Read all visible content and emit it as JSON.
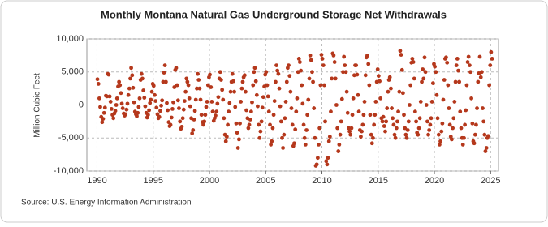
{
  "chart_data": {
    "type": "scatter",
    "title": "Monthly Montana Natural Gas Underground Storage Net Withdrawals",
    "y_label": "Million Cubic Feet",
    "source": "Source: U.S. Energy Information Administration",
    "color": "#b5381c",
    "grid": true,
    "xlim": [
      1989.1,
      2025.7
    ],
    "xticks": [
      1990,
      1995,
      2000,
      2005,
      2010,
      2015,
      2020,
      2025
    ],
    "ylim": [
      -10000,
      10000
    ],
    "yticks": [
      {
        "value": 10000,
        "label": "10,000"
      },
      {
        "value": 5000,
        "label": "5,000"
      },
      0,
      {
        "value": -5000,
        "label": "-5,000"
      },
      {
        "value": -10000,
        "label": "-10,000"
      }
    ],
    "x": [
      1990.04,
      1990.13,
      1990.21,
      1990.29,
      1990.38,
      1990.46,
      1990.54,
      1990.63,
      1990.71,
      1990.79,
      1990.88,
      1990.96,
      1991.04,
      1991.13,
      1991.21,
      1991.29,
      1991.38,
      1991.46,
      1991.54,
      1991.63,
      1991.71,
      1991.79,
      1991.88,
      1991.96,
      1992.04,
      1992.13,
      1992.21,
      1992.29,
      1992.38,
      1992.46,
      1992.54,
      1992.63,
      1992.71,
      1992.79,
      1992.88,
      1992.96,
      1993.04,
      1993.13,
      1993.21,
      1993.29,
      1993.38,
      1993.46,
      1993.54,
      1993.63,
      1993.71,
      1993.79,
      1993.88,
      1993.96,
      1994.04,
      1994.13,
      1994.21,
      1994.29,
      1994.38,
      1994.46,
      1994.54,
      1994.63,
      1994.71,
      1994.79,
      1994.88,
      1994.96,
      1995.04,
      1995.13,
      1995.21,
      1995.29,
      1995.38,
      1995.46,
      1995.54,
      1995.63,
      1995.71,
      1995.79,
      1995.88,
      1995.96,
      1996.04,
      1996.13,
      1996.21,
      1996.29,
      1996.38,
      1996.46,
      1996.54,
      1996.63,
      1996.71,
      1996.79,
      1996.88,
      1996.96,
      1997.04,
      1997.13,
      1997.21,
      1997.29,
      1997.38,
      1997.46,
      1997.54,
      1997.63,
      1997.71,
      1997.79,
      1997.88,
      1997.96,
      1998.04,
      1998.13,
      1998.21,
      1998.29,
      1998.38,
      1998.46,
      1998.54,
      1998.63,
      1998.71,
      1998.79,
      1998.88,
      1998.96,
      1999.04,
      1999.13,
      1999.21,
      1999.29,
      1999.38,
      1999.46,
      1999.54,
      1999.63,
      1999.71,
      1999.79,
      1999.88,
      1999.96,
      2000.04,
      2000.13,
      2000.21,
      2000.29,
      2000.38,
      2000.46,
      2000.54,
      2000.63,
      2000.71,
      2000.79,
      2000.88,
      2000.96,
      2001.04,
      2001.13,
      2001.21,
      2001.29,
      2001.38,
      2001.46,
      2001.54,
      2001.63,
      2001.71,
      2001.79,
      2001.88,
      2001.96,
      2002.04,
      2002.13,
      2002.21,
      2002.29,
      2002.38,
      2002.46,
      2002.54,
      2002.63,
      2002.71,
      2002.79,
      2002.88,
      2002.96,
      2003.04,
      2003.13,
      2003.21,
      2003.29,
      2003.38,
      2003.46,
      2003.54,
      2003.63,
      2003.71,
      2003.79,
      2003.88,
      2003.96,
      2004.04,
      2004.13,
      2004.21,
      2004.29,
      2004.38,
      2004.46,
      2004.54,
      2004.63,
      2004.71,
      2004.79,
      2004.88,
      2004.96,
      2005.04,
      2005.13,
      2005.21,
      2005.29,
      2005.38,
      2005.46,
      2005.54,
      2005.63,
      2005.71,
      2005.79,
      2005.88,
      2005.96,
      2006.04,
      2006.13,
      2006.21,
      2006.29,
      2006.38,
      2006.46,
      2006.54,
      2006.63,
      2006.71,
      2006.79,
      2006.88,
      2006.96,
      2007.04,
      2007.13,
      2007.21,
      2007.29,
      2007.38,
      2007.46,
      2007.54,
      2007.63,
      2007.71,
      2007.79,
      2007.88,
      2007.96,
      2008.04,
      2008.13,
      2008.21,
      2008.29,
      2008.38,
      2008.46,
      2008.54,
      2008.63,
      2008.71,
      2008.79,
      2008.88,
      2008.96,
      2009.04,
      2009.13,
      2009.21,
      2009.29,
      2009.38,
      2009.46,
      2009.54,
      2009.63,
      2009.71,
      2009.79,
      2009.88,
      2009.96,
      2010.04,
      2010.13,
      2010.21,
      2010.29,
      2010.38,
      2010.46,
      2010.54,
      2010.63,
      2010.71,
      2010.79,
      2010.88,
      2010.96,
      2011.04,
      2011.13,
      2011.21,
      2011.29,
      2011.38,
      2011.46,
      2011.54,
      2011.63,
      2011.71,
      2011.79,
      2011.88,
      2011.96,
      2012.04,
      2012.13,
      2012.21,
      2012.29,
      2012.38,
      2012.46,
      2012.54,
      2012.63,
      2012.71,
      2012.79,
      2012.88,
      2012.96,
      2013.04,
      2013.13,
      2013.21,
      2013.29,
      2013.38,
      2013.46,
      2013.54,
      2013.63,
      2013.71,
      2013.79,
      2013.88,
      2013.96,
      2014.04,
      2014.13,
      2014.21,
      2014.29,
      2014.38,
      2014.46,
      2014.54,
      2014.63,
      2014.71,
      2014.79,
      2014.88,
      2014.96,
      2015.04,
      2015.13,
      2015.21,
      2015.29,
      2015.38,
      2015.46,
      2015.54,
      2015.63,
      2015.71,
      2015.79,
      2015.88,
      2015.96,
      2016.04,
      2016.13,
      2016.21,
      2016.29,
      2016.38,
      2016.46,
      2016.54,
      2016.63,
      2016.71,
      2016.79,
      2016.88,
      2016.96,
      2017.04,
      2017.13,
      2017.21,
      2017.29,
      2017.38,
      2017.46,
      2017.54,
      2017.63,
      2017.71,
      2017.79,
      2017.88,
      2017.96,
      2018.04,
      2018.13,
      2018.21,
      2018.29,
      2018.38,
      2018.46,
      2018.54,
      2018.63,
      2018.71,
      2018.79,
      2018.88,
      2018.96,
      2019.04,
      2019.13,
      2019.21,
      2019.29,
      2019.38,
      2019.46,
      2019.54,
      2019.63,
      2019.71,
      2019.79,
      2019.88,
      2019.96,
      2020.04,
      2020.13,
      2020.21,
      2020.29,
      2020.38,
      2020.46,
      2020.54,
      2020.63,
      2020.71,
      2020.79,
      2020.88,
      2020.96,
      2021.04,
      2021.13,
      2021.21,
      2021.29,
      2021.38,
      2021.46,
      2021.54,
      2021.63,
      2021.71,
      2021.79,
      2021.88,
      2021.96,
      2022.04,
      2022.13,
      2022.21,
      2022.29,
      2022.38,
      2022.46,
      2022.54,
      2022.63,
      2022.71,
      2022.79,
      2022.88,
      2022.96,
      2023.04,
      2023.13,
      2023.21,
      2023.29,
      2023.38,
      2023.46,
      2023.54,
      2023.63,
      2023.71,
      2023.79,
      2023.88,
      2023.96,
      2024.04,
      2024.13,
      2024.21,
      2024.29,
      2024.38,
      2024.46,
      2024.54,
      2024.63,
      2024.71,
      2024.79,
      2024.88,
      2024.96,
      2025.04,
      2025.13
    ],
    "values": [
      3900,
      3200,
      1000,
      -300,
      -1800,
      -2600,
      -2100,
      -1200,
      -400,
      1400,
      1300,
      4700,
      4600,
      1300,
      500,
      -600,
      -1500,
      -2000,
      -1300,
      -900,
      0,
      1000,
      2800,
      3500,
      3000,
      1800,
      200,
      -500,
      -1300,
      -1600,
      -1400,
      -700,
      200,
      1500,
      2500,
      4000,
      5600,
      4500,
      2600,
      400,
      -1000,
      -1400,
      -1700,
      -1200,
      -300,
      1000,
      3800,
      4700,
      4000,
      2200,
      1100,
      -200,
      -1200,
      -1900,
      -1500,
      -800,
      300,
      800,
      2000,
      3200,
      2900,
      1500,
      600,
      -400,
      -1400,
      -2000,
      -1800,
      -900,
      -100,
      700,
      3500,
      4900,
      6000,
      3500,
      300,
      -800,
      -2600,
      -3200,
      -3000,
      -1900,
      -600,
      400,
      2700,
      5300,
      5600,
      3000,
      700,
      -500,
      -2500,
      -3600,
      -3300,
      -2000,
      -700,
      600,
      2000,
      4000,
      3500,
      3000,
      1000,
      -200,
      -2000,
      -4300,
      -3800,
      -2200,
      -900,
      800,
      2500,
      4700,
      3800,
      2500,
      800,
      -1500,
      -2600,
      -3000,
      -2500,
      -1500,
      -300,
      500,
      3000,
      4200,
      4600,
      2700,
      500,
      -1000,
      -2400,
      -2000,
      -1600,
      -1000,
      200,
      1200,
      4000,
      5000,
      3800,
      2300,
      800,
      -2000,
      -4500,
      -5500,
      -4800,
      -3000,
      -1000,
      300,
      2000,
      3500,
      4700,
      3600,
      2000,
      -300,
      -2800,
      -4200,
      -6500,
      -5200,
      -2800,
      500,
      2500,
      3500,
      4200,
      4500,
      2000,
      -800,
      -2000,
      -3500,
      -3000,
      -2200,
      -1000,
      400,
      3000,
      5000,
      5600,
      3600,
      1500,
      -200,
      -3000,
      -5000,
      -4000,
      -2500,
      -400,
      1200,
      2800,
      4600,
      5000,
      3000,
      1300,
      -1000,
      -3000,
      -6000,
      -5500,
      -3500,
      -1500,
      600,
      3500,
      6000,
      5200,
      4700,
      2500,
      -200,
      -2500,
      -5000,
      -6500,
      -4500,
      -2000,
      500,
      3500,
      5600,
      6000,
      4400,
      2000,
      -500,
      -3000,
      -6200,
      -5800,
      -3700,
      -1000,
      1000,
      5000,
      7000,
      6500,
      5200,
      3000,
      200,
      -3000,
      -5000,
      -6000,
      -3800,
      -1500,
      800,
      4000,
      7500,
      6800,
      5000,
      3500,
      -500,
      -5000,
      -9200,
      -9000,
      -8000,
      -6000,
      -3500,
      3000,
      7600,
      7000,
      6000,
      3000,
      -2500,
      -8500,
      -9000,
      -8000,
      -5500,
      -4800,
      -1000,
      4000,
      7800,
      7500,
      6500,
      4000,
      0,
      -3500,
      -7000,
      -6000,
      -4500,
      -2500,
      900,
      5000,
      7300,
      6000,
      5000,
      2000,
      -1200,
      -3500,
      -4000,
      -4500,
      -3500,
      -1500,
      1000,
      4500,
      6000,
      6000,
      4600,
      1500,
      -1000,
      -3800,
      -4800,
      -4000,
      -3000,
      -1500,
      500,
      4500,
      7200,
      7500,
      6200,
      3000,
      -1500,
      -4500,
      -5800,
      -5000,
      -3000,
      -1500,
      500,
      3500,
      5400,
      4400,
      3600,
      1000,
      -2000,
      -2500,
      -1800,
      -3200,
      -4000,
      -2500,
      -500,
      2000,
      3800,
      4200,
      2500,
      -500,
      -2000,
      -3000,
      -4500,
      -5000,
      -3500,
      -2500,
      -1000,
      2000,
      8200,
      7600,
      5300,
      1800,
      -1500,
      -3500,
      -4500,
      -5000,
      -3800,
      -2500,
      0,
      3000,
      6400,
      7000,
      6500,
      4000,
      -1000,
      -2500,
      -4200,
      -4500,
      -3500,
      -2000,
      500,
      3500,
      5400,
      4000,
      7200,
      5000,
      0,
      -2500,
      -4500,
      -3800,
      -3000,
      -2000,
      500,
      3300,
      6200,
      5800,
      5000,
      1500,
      -2000,
      -4500,
      -6000,
      -5500,
      -4000,
      -2800,
      800,
      3800,
      7000,
      7200,
      6400,
      3000,
      -500,
      -3000,
      -4800,
      -5200,
      -3500,
      -2000,
      500,
      3500,
      6000,
      7000,
      5200,
      3500,
      -1000,
      -3500,
      -5000,
      -6000,
      -5000,
      -3000,
      -800,
      3000,
      6500,
      7300,
      6000,
      5000,
      1000,
      -2800,
      -5500,
      -5800,
      -4500,
      -3000,
      -500,
      3500,
      4800,
      7300,
      4200,
      5000,
      -500,
      -2500,
      -4500,
      -7000,
      -6500,
      -5000,
      -4700,
      3000,
      6000,
      8000,
      7000
    ]
  }
}
